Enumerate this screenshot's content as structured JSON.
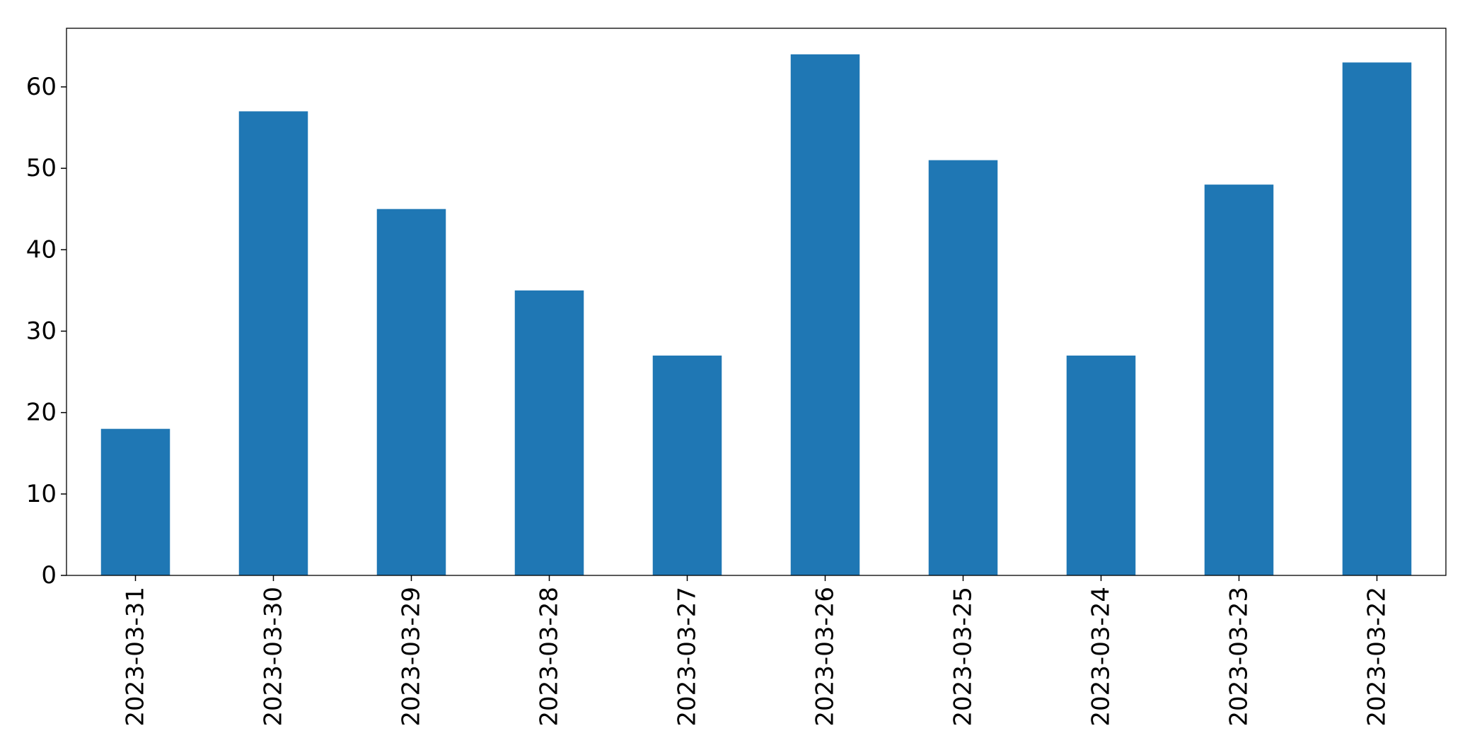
{
  "chart_data": {
    "type": "bar",
    "categories": [
      "2023-03-31",
      "2023-03-30",
      "2023-03-29",
      "2023-03-28",
      "2023-03-27",
      "2023-03-26",
      "2023-03-25",
      "2023-03-24",
      "2023-03-23",
      "2023-03-22"
    ],
    "values": [
      18,
      57,
      45,
      35,
      27,
      64,
      51,
      27,
      48,
      63
    ],
    "title": "",
    "xlabel": "",
    "ylabel": "",
    "ylim": [
      0,
      67.2
    ],
    "yticks": [
      0,
      10,
      20,
      30,
      40,
      50,
      60
    ],
    "x_tick_rotation": "vertical",
    "grid": false,
    "legend": "none",
    "bar_color": "#1f77b4"
  }
}
